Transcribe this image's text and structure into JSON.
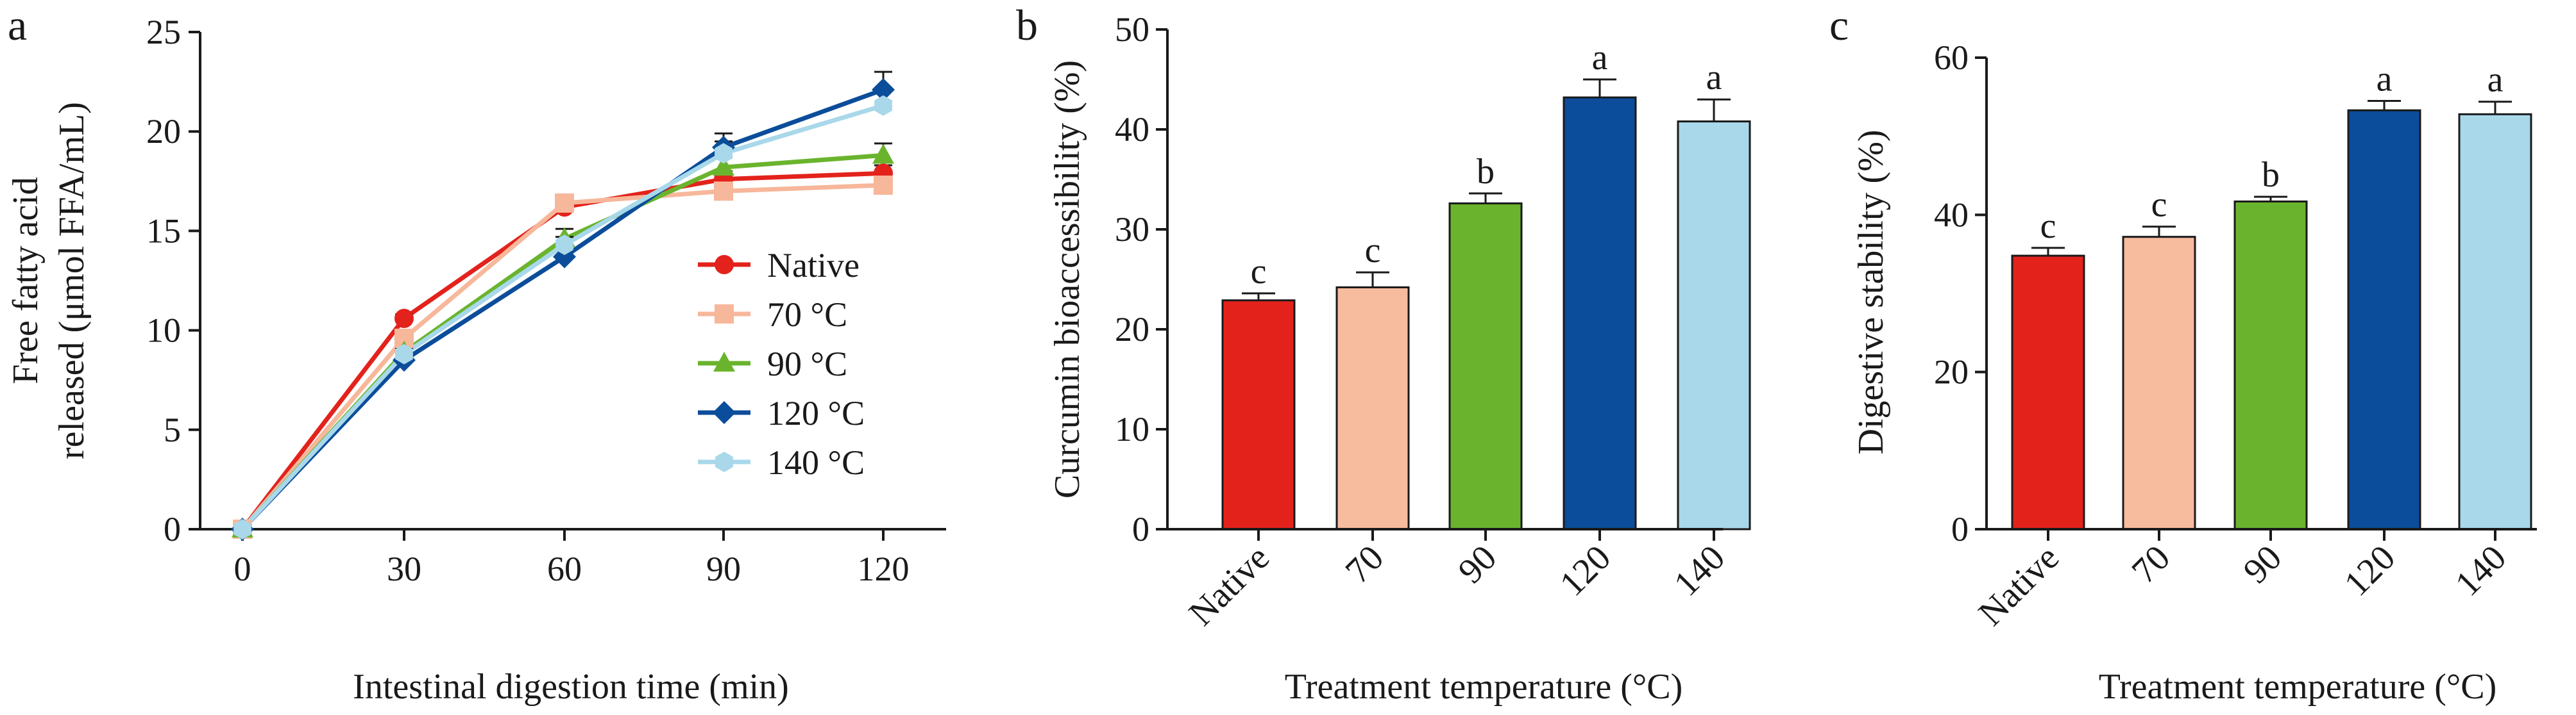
{
  "panels": [
    {
      "letter": "a",
      "chart_data": {
        "type": "line",
        "x": [
          0,
          30,
          60,
          90,
          120
        ],
        "xlim": [
          0,
          120
        ],
        "ylim": [
          0,
          25
        ],
        "yticks": [
          0,
          5,
          10,
          15,
          20,
          25
        ],
        "xlabel": "Intestinal digestion time (min)",
        "ylabel_lines": [
          "Free fatty acid",
          "released (μmol FFA/mL)"
        ],
        "legend_position": "center-right",
        "grid": false,
        "series": [
          {
            "name": "Native",
            "marker": "circle",
            "color": "#e3221c",
            "values": [
              0,
              10.6,
              16.2,
              17.6,
              17.9
            ],
            "errors": [
              0,
              0.2,
              0.3,
              0.4,
              0.4
            ]
          },
          {
            "name": "70 °C",
            "marker": "square",
            "color": "#f7b79a",
            "values": [
              0,
              9.6,
              16.4,
              17.0,
              17.3
            ],
            "errors": [
              0,
              0.3,
              0.3,
              0.4,
              0.4
            ]
          },
          {
            "name": "90 °C",
            "marker": "triangle",
            "color": "#6ab42d",
            "values": [
              0,
              8.9,
              14.6,
              18.2,
              18.8
            ],
            "errors": [
              0,
              0.3,
              0.5,
              0.5,
              0.6
            ]
          },
          {
            "name": "120 °C",
            "marker": "diamond",
            "color": "#0b4d9a",
            "values": [
              0,
              8.5,
              13.7,
              19.2,
              22.1
            ],
            "errors": [
              0,
              0.3,
              0.4,
              0.7,
              0.9
            ]
          },
          {
            "name": "140 °C",
            "marker": "hexagon",
            "color": "#a8d8ea",
            "values": [
              0,
              8.8,
              14.3,
              18.9,
              21.3
            ],
            "errors": [
              0,
              0.3,
              0.4,
              0.6,
              0.8
            ]
          }
        ]
      }
    },
    {
      "letter": "b",
      "chart_data": {
        "type": "bar",
        "categories": [
          "Native",
          "70",
          "90",
          "120",
          "140"
        ],
        "values": [
          22.9,
          24.2,
          32.6,
          43.2,
          40.8
        ],
        "errors": [
          0.7,
          1.5,
          1.0,
          1.8,
          2.2
        ],
        "significance": [
          "c",
          "c",
          "b",
          "a",
          "a"
        ],
        "colors": [
          "#e3221c",
          "#f7bb9e",
          "#6ab42d",
          "#0b4d9a",
          "#a8d8ea"
        ],
        "ylim": [
          0,
          50
        ],
        "yticks": [
          0,
          10,
          20,
          30,
          40,
          50
        ],
        "xlabel": "Treatment temperature (°C)",
        "ylabel": "Curcumin bioaccessibility (%)"
      }
    },
    {
      "letter": "c",
      "chart_data": {
        "type": "bar",
        "categories": [
          "Native",
          "70",
          "90",
          "120",
          "140"
        ],
        "values": [
          34.8,
          37.2,
          41.7,
          53.3,
          52.8
        ],
        "errors": [
          1.0,
          1.3,
          0.6,
          1.2,
          1.6
        ],
        "significance": [
          "c",
          "c",
          "b",
          "a",
          "a"
        ],
        "colors": [
          "#e3221c",
          "#f7bb9e",
          "#6ab42d",
          "#0b4d9a",
          "#a8d8ea"
        ],
        "ylim": [
          0,
          60
        ],
        "yticks": [
          0,
          20,
          40,
          60
        ],
        "xlabel": "Treatment temperature (°C)",
        "ylabel": "Digestive stability (%)"
      }
    }
  ]
}
